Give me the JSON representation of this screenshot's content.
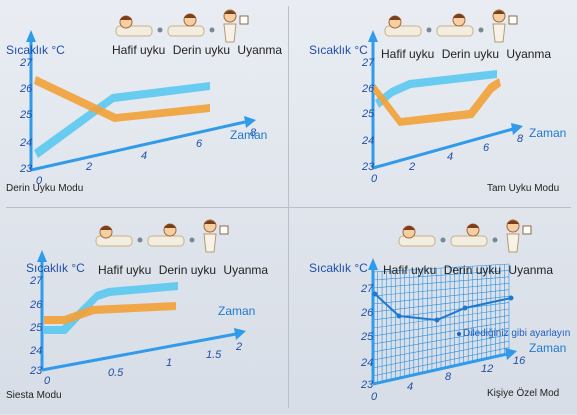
{
  "colors": {
    "axis": "#2f9bea",
    "blue_band": "#5ac8f0",
    "orange_band": "#f2a23a",
    "grid": "#2b8fe0",
    "text_blue": "#1f4fa8"
  },
  "stage_labels": [
    "Hafif uyku",
    "Derin uyku",
    "Uyanma"
  ],
  "temperature_label": "Sıcaklık °C",
  "time_label": "Zaman",
  "y_ticks": [
    "23",
    "24",
    "25",
    "26",
    "27"
  ],
  "panels": [
    {
      "mode": "Derin Uyku Modu",
      "x_ticks": [
        "0",
        "2",
        "4",
        "6",
        "8"
      ]
    },
    {
      "mode": "Tam Uyku Modu",
      "x_ticks": [
        "0",
        "2",
        "4",
        "6",
        "8"
      ]
    },
    {
      "mode": "Siesta Modu",
      "x_ticks": [
        "0",
        "0.5",
        "1",
        "1.5",
        "2"
      ]
    },
    {
      "mode": "Kişiye Özel Mod",
      "x_ticks": [
        "0",
        "4",
        "8",
        "12",
        "16"
      ],
      "note": "Dilediğiniz gibi ayarlayın"
    }
  ],
  "icons": [
    "sleeping-person-icon",
    "turning-person-icon",
    "waking-person-icon",
    "arrow-right-icon",
    "clock-icon"
  ]
}
